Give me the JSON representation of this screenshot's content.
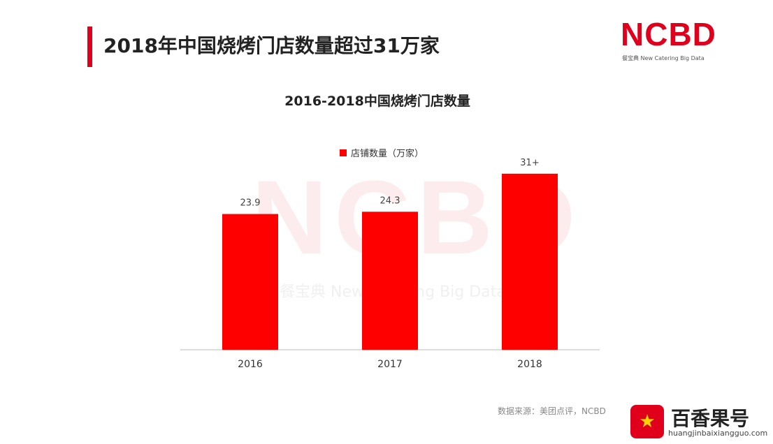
{
  "slide": {
    "title": "2018年中国烧烤门店数量超过31万家"
  },
  "logo": {
    "text": "NCBD",
    "subtitle": "餐宝典 New Catering Big Data"
  },
  "watermark": {
    "text": "NCBD",
    "subtitle": "餐宝典 New Catering Big Data"
  },
  "source": "数据来源：美团点评，NCBD",
  "corner_brand": {
    "title": "百香果号",
    "url": "huangjinbaixiangguo.com",
    "icon": "star-icon"
  },
  "chart_data": {
    "type": "bar",
    "title": "2016-2018中国烧烤门店数量",
    "categories": [
      "2016",
      "2017",
      "2018"
    ],
    "series": [
      {
        "name": "店铺数量（万家）",
        "values": [
          23.9,
          24.3,
          31
        ],
        "labels": [
          "23.9",
          "24.3",
          "31+"
        ],
        "color": "#ff0000"
      }
    ],
    "ylim": [
      0,
      37
    ],
    "legend": "top",
    "grid": false
  }
}
